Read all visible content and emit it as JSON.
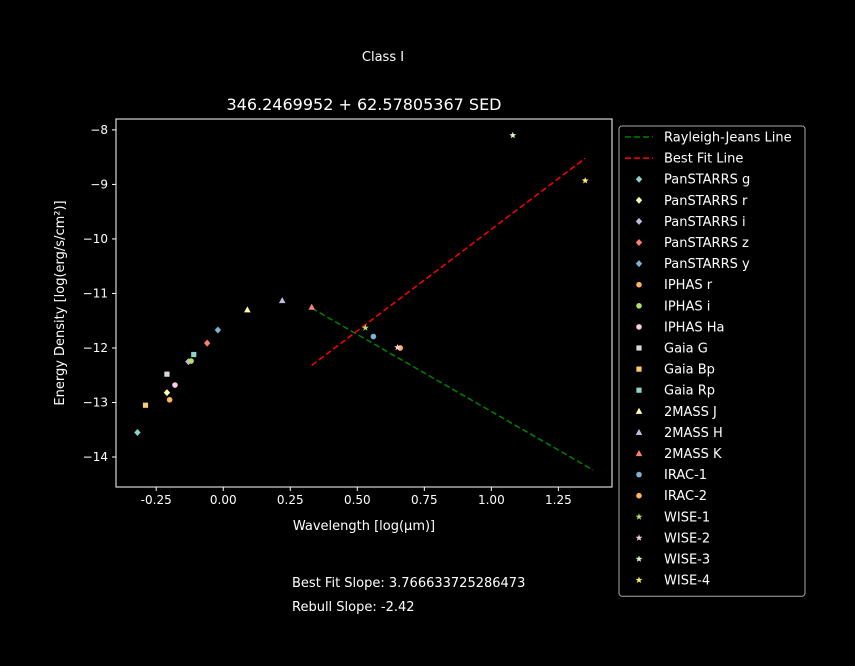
{
  "figure": {
    "suptitle": "Class I"
  },
  "notes": {
    "best_fit_slope": "Best Fit Slope: 3.766633725286473",
    "rebull_slope": "Rebull Slope: -2.42"
  },
  "chart_data": {
    "type": "scatter",
    "title": "346.2469952 + 62.57805367 SED",
    "xlabel": "Wavelength [log(μm)]",
    "ylabel": "Energy Density [log(erg/s/cm²)]",
    "xlim": [
      -0.4,
      1.45
    ],
    "ylim": [
      -14.55,
      -7.8
    ],
    "xticks": [
      "-0.25",
      "0.00",
      "0.25",
      "0.50",
      "0.75",
      "1.00",
      "1.25"
    ],
    "xtick_values": [
      -0.25,
      0,
      0.25,
      0.5,
      0.75,
      1.0,
      1.25
    ],
    "yticks": [
      "−8",
      "−9",
      "−10",
      "−11",
      "−12",
      "−13",
      "−14"
    ],
    "ytick_values": [
      -8,
      -9,
      -10,
      -11,
      -12,
      -13,
      -14
    ],
    "grid": false,
    "legend_position": "outside-right",
    "lines": [
      {
        "name": "Rayleigh-Jeans Line",
        "color": "#008000",
        "dash": true,
        "x": [
          0.33,
          1.38
        ],
        "y": [
          -11.27,
          -14.24
        ]
      },
      {
        "name": "Best Fit Line",
        "color": "#ff0000",
        "dash": true,
        "x": [
          0.33,
          1.35
        ],
        "y": [
          -12.32,
          -8.52
        ]
      }
    ],
    "series": [
      {
        "name": "PanSTARRS g",
        "marker": "diamond",
        "color": "#8dd3c7",
        "x": [
          -0.32
        ],
        "y": [
          -13.55
        ]
      },
      {
        "name": "PanSTARRS r",
        "marker": "diamond",
        "color": "#ffffb3",
        "x": [
          -0.21
        ],
        "y": [
          -12.82
        ]
      },
      {
        "name": "PanSTARRS i",
        "marker": "diamond",
        "color": "#bebada",
        "x": [
          -0.13
        ],
        "y": [
          -12.25
        ]
      },
      {
        "name": "PanSTARRS z",
        "marker": "diamond",
        "color": "#fb8072",
        "x": [
          -0.06
        ],
        "y": [
          -11.91
        ]
      },
      {
        "name": "PanSTARRS y",
        "marker": "diamond",
        "color": "#80b1d3",
        "x": [
          -0.02
        ],
        "y": [
          -11.67
        ]
      },
      {
        "name": "IPHAS r",
        "marker": "circle",
        "color": "#fdb462",
        "x": [
          -0.2
        ],
        "y": [
          -12.95
        ]
      },
      {
        "name": "IPHAS i",
        "marker": "circle",
        "color": "#b3de69",
        "x": [
          -0.12
        ],
        "y": [
          -12.24
        ]
      },
      {
        "name": "IPHAS Ha",
        "marker": "circle",
        "color": "#fccde5",
        "x": [
          -0.18
        ],
        "y": [
          -12.68
        ]
      },
      {
        "name": "Gaia G",
        "marker": "square",
        "color": "#d9d9d9",
        "x": [
          -0.21
        ],
        "y": [
          -12.48
        ]
      },
      {
        "name": "Gaia Bp",
        "marker": "square",
        "color": "#fccd6e",
        "x": [
          -0.29
        ],
        "y": [
          -13.05
        ]
      },
      {
        "name": "Gaia Rp",
        "marker": "square",
        "color": "#8dd3c7",
        "x": [
          -0.11
        ],
        "y": [
          -12.12
        ]
      },
      {
        "name": "2MASS J",
        "marker": "triangle",
        "color": "#ffffb3",
        "x": [
          0.09
        ],
        "y": [
          -11.3
        ]
      },
      {
        "name": "2MASS H",
        "marker": "triangle",
        "color": "#bebada",
        "x": [
          0.22
        ],
        "y": [
          -11.13
        ]
      },
      {
        "name": "2MASS K",
        "marker": "triangle",
        "color": "#fb8072",
        "x": [
          0.33
        ],
        "y": [
          -11.25
        ]
      },
      {
        "name": "IRAC-1",
        "marker": "circle",
        "color": "#80b1d3",
        "x": [
          0.56
        ],
        "y": [
          -11.79
        ]
      },
      {
        "name": "IRAC-2",
        "marker": "circle",
        "color": "#fdb462",
        "x": [
          0.66
        ],
        "y": [
          -12.0
        ]
      },
      {
        "name": "WISE-1",
        "marker": "star",
        "color": "#b3de69",
        "x": [
          0.53
        ],
        "y": [
          -11.63
        ]
      },
      {
        "name": "WISE-2",
        "marker": "star",
        "color": "#fccde5",
        "x": [
          0.65
        ],
        "y": [
          -11.99
        ]
      },
      {
        "name": "WISE-3",
        "marker": "star",
        "color": "#d9f7c7",
        "x": [
          1.08
        ],
        "y": [
          -8.1
        ]
      },
      {
        "name": "WISE-4",
        "marker": "star",
        "color": "#ffed6f",
        "x": [
          1.35
        ],
        "y": [
          -8.93
        ]
      }
    ]
  }
}
